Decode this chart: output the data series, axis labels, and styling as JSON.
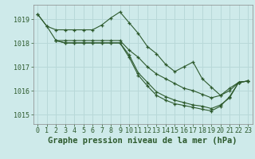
{
  "xlabel": "Graphe pression niveau de la mer (hPa)",
  "background_color": "#ceeaea",
  "grid_color": "#b8d8d8",
  "line_color": "#2d5a2d",
  "ylim": [
    1014.6,
    1019.6
  ],
  "xlim": [
    -0.5,
    23.5
  ],
  "yticks": [
    1015,
    1016,
    1017,
    1018,
    1019
  ],
  "xticks": [
    0,
    1,
    2,
    3,
    4,
    5,
    6,
    7,
    8,
    9,
    10,
    11,
    12,
    13,
    14,
    15,
    16,
    17,
    18,
    19,
    20,
    21,
    22,
    23
  ],
  "line1_x": [
    0,
    1,
    2,
    3,
    4,
    5,
    6,
    7,
    8,
    9,
    10,
    11,
    12,
    13,
    14,
    15,
    16,
    17,
    18,
    19,
    20,
    21,
    22,
    23
  ],
  "line1_y": [
    1019.2,
    1018.7,
    1018.55,
    1018.55,
    1018.55,
    1018.55,
    1018.55,
    1018.75,
    1019.05,
    1019.3,
    1018.85,
    1018.4,
    1017.85,
    1017.55,
    1017.1,
    1016.8,
    1017.0,
    1017.2,
    1016.5,
    1016.15,
    1015.8,
    1016.1,
    1016.35,
    1016.4
  ],
  "line2_x": [
    0,
    1,
    2,
    3,
    4,
    5,
    6,
    7,
    8,
    9,
    10,
    11,
    12,
    13,
    14,
    15,
    16,
    17,
    18,
    19,
    20,
    21,
    22,
    23
  ],
  "line2_y": [
    1019.2,
    1018.7,
    1018.1,
    1018.1,
    1018.1,
    1018.1,
    1018.1,
    1018.1,
    1018.1,
    1018.1,
    1017.7,
    1017.4,
    1017.0,
    1016.7,
    1016.5,
    1016.3,
    1016.1,
    1016.0,
    1015.85,
    1015.7,
    1015.8,
    1016.0,
    1016.35,
    1016.4
  ],
  "line3_x": [
    2,
    3,
    4,
    5,
    6,
    7,
    8,
    9,
    10,
    11,
    12,
    13,
    14,
    15,
    16,
    17,
    18,
    19,
    20,
    21,
    22,
    23
  ],
  "line3_y": [
    1018.1,
    1018.0,
    1018.0,
    1018.0,
    1018.0,
    1018.0,
    1018.0,
    1018.0,
    1017.5,
    1016.75,
    1016.35,
    1015.95,
    1015.75,
    1015.6,
    1015.5,
    1015.4,
    1015.35,
    1015.25,
    1015.4,
    1015.7,
    1016.35,
    1016.4
  ],
  "line4_x": [
    2,
    3,
    4,
    5,
    6,
    7,
    8,
    9,
    10,
    11,
    12,
    13,
    14,
    15,
    16,
    17,
    18,
    19,
    20,
    21,
    22,
    23
  ],
  "line4_y": [
    1018.1,
    1018.0,
    1018.0,
    1018.0,
    1018.0,
    1018.0,
    1018.0,
    1018.0,
    1017.4,
    1016.65,
    1016.2,
    1015.8,
    1015.6,
    1015.45,
    1015.38,
    1015.3,
    1015.22,
    1015.15,
    1015.35,
    1015.75,
    1016.35,
    1016.4
  ],
  "font_color": "#2d5a2d",
  "tick_fontsize": 6.0,
  "xlabel_fontsize": 7.5
}
